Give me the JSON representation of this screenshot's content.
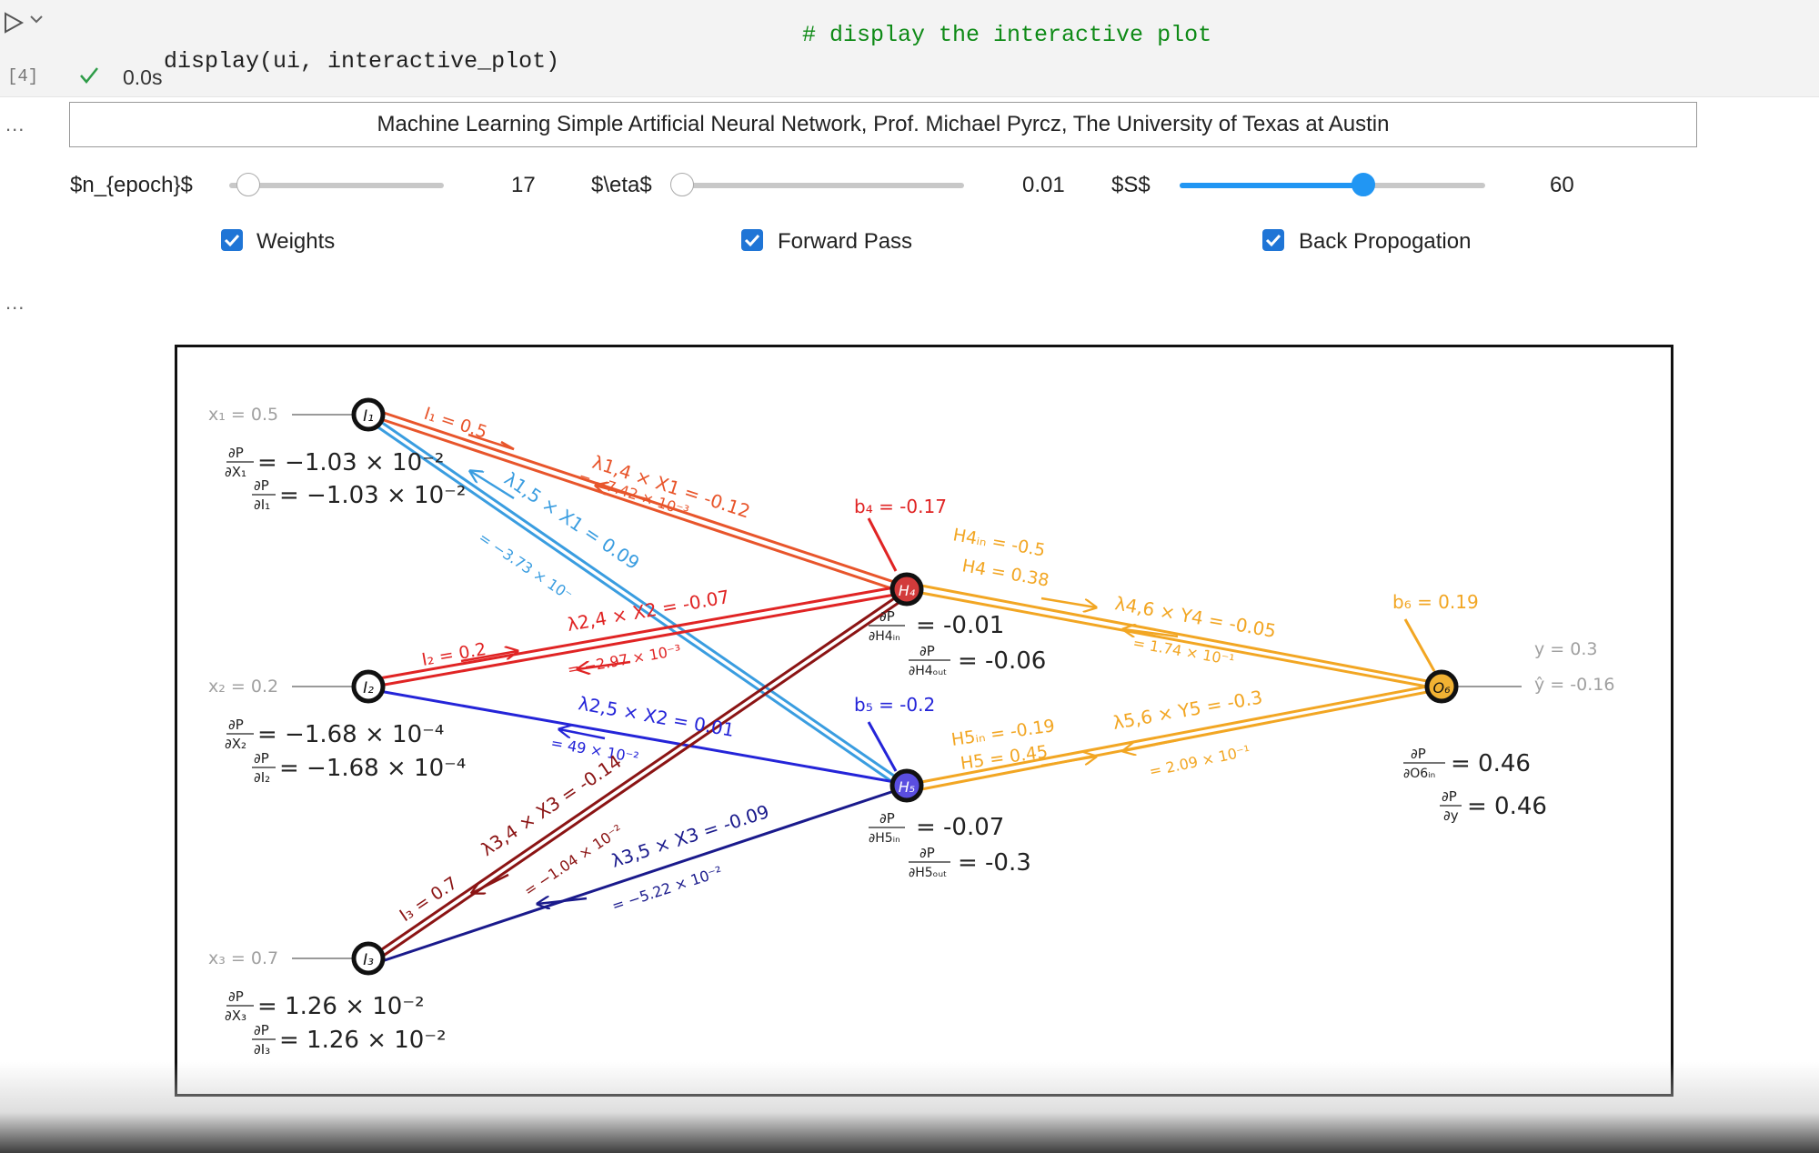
{
  "cell": {
    "code": "display(ui, interactive_plot)",
    "comment": "# display the interactive plot",
    "exec_count": "[4]",
    "exec_time": "0.0s",
    "output_prompt": "..."
  },
  "widget": {
    "title": "Machine Learning Simple Artificial Neural Network, Prof. Michael Pyrcz, The University of Texas at Austin",
    "sliders": [
      {
        "label": "$n_{epoch}$",
        "value": "17",
        "fraction": 0.09
      },
      {
        "label": "$\\eta$",
        "value": "0.01",
        "fraction": 0.0
      },
      {
        "label": "$S$",
        "value": "60",
        "fraction": 0.6
      }
    ],
    "checkboxes": [
      {
        "label": "Weights",
        "checked": true
      },
      {
        "label": "Forward Pass",
        "checked": true
      },
      {
        "label": "Back Propogation",
        "checked": true
      }
    ]
  },
  "network": {
    "colors": {
      "I1_H4": "#e8552b",
      "I1_H5": "#3a9de0",
      "I2_H4": "#e02424",
      "I2_H5": "#2424d8",
      "I3_H4": "#8b1414",
      "I3_H5": "#1a1a8c",
      "H_O": "#f2a623",
      "input_text": "#a0a0a0"
    },
    "inputs": [
      {
        "node": "I1",
        "x_label": "x₁ = 0.5",
        "flow_label": "I₁ = 0.5",
        "dx": "= −1.03 × 10⁻²",
        "di": "= −1.03 × 10⁻²"
      },
      {
        "node": "I2",
        "x_label": "x₂ = 0.2",
        "flow_label": "I₂ = 0.2",
        "dx": "= −1.68 × 10⁻⁴",
        "di": "= −1.68 × 10⁻⁴"
      },
      {
        "node": "I3",
        "x_label": "x₃ = 0.7",
        "flow_label": "I₃ = 0.7",
        "dx": "= 1.26 × 10⁻²",
        "di": "= 1.26 × 10⁻²"
      }
    ],
    "hidden": [
      {
        "node": "H4",
        "bias": "b₄ = -0.17",
        "h_in": "H4ᵢₙ = -0.5",
        "h_out": "H4 = 0.38",
        "d_in": "= -0.01",
        "d_out": "= -0.06",
        "fill": "#d23b3b"
      },
      {
        "node": "H5",
        "bias": "b₅ = -0.2",
        "h_in": "H5ᵢₙ = -0.19",
        "h_out": "H5 = 0.45",
        "d_in": "= -0.07",
        "d_out": "= -0.3",
        "fill": "#5a4ee0"
      }
    ],
    "output": {
      "node": "O6",
      "bias": "b₆ = 0.19",
      "y": "y = 0.3",
      "yhat": "ŷ = -0.16",
      "d_in": "= 0.46",
      "d_y": "= 0.46",
      "fill": "#f2b233"
    },
    "edges": [
      {
        "w": "λ1,4 × X1 = -0.12",
        "g": "= −7.42 × 10⁻³"
      },
      {
        "w": "λ1,5 × X1 = 0.09",
        "g": "= −3.73 × 10⁻"
      },
      {
        "w": "λ2,4 × X2 = -0.07",
        "g": "= −2.97 × 10⁻³"
      },
      {
        "w": "λ2,5 × X2 = 0.01",
        "g": "= 49 × 10⁻²"
      },
      {
        "w": "λ3,4 × X3 = -0.14",
        "g": "= −1.04 × 10⁻²"
      },
      {
        "w": "λ3,5 × X3 = -0.09",
        "g": "= −5.22 × 10⁻²"
      },
      {
        "w": "λ4,6 × Y4 = -0.05",
        "g": "= 1.74 × 10⁻¹"
      },
      {
        "w": "λ5,6 × Y5 = -0.3",
        "g": "= 2.09 × 10⁻¹"
      }
    ],
    "symbols": {
      "dP": "∂P",
      "dX1": "∂X₁",
      "dX2": "∂X₂",
      "dX3": "∂X₃",
      "dI1": "∂I₁",
      "dI2": "∂I₂",
      "dI3": "∂I₃",
      "dH4in": "∂H4ᵢₙ",
      "dH4out": "∂H4ₒᵤₜ",
      "dH5in": "∂H5ᵢₙ",
      "dH5out": "∂H5ₒᵤₜ",
      "dO6in": "∂O6ᵢₙ",
      "dy": "∂y",
      "I1": "I₁",
      "I2": "I₂",
      "I3": "I₃",
      "H4": "H₄",
      "H5": "H₅",
      "O6": "O₆"
    }
  }
}
